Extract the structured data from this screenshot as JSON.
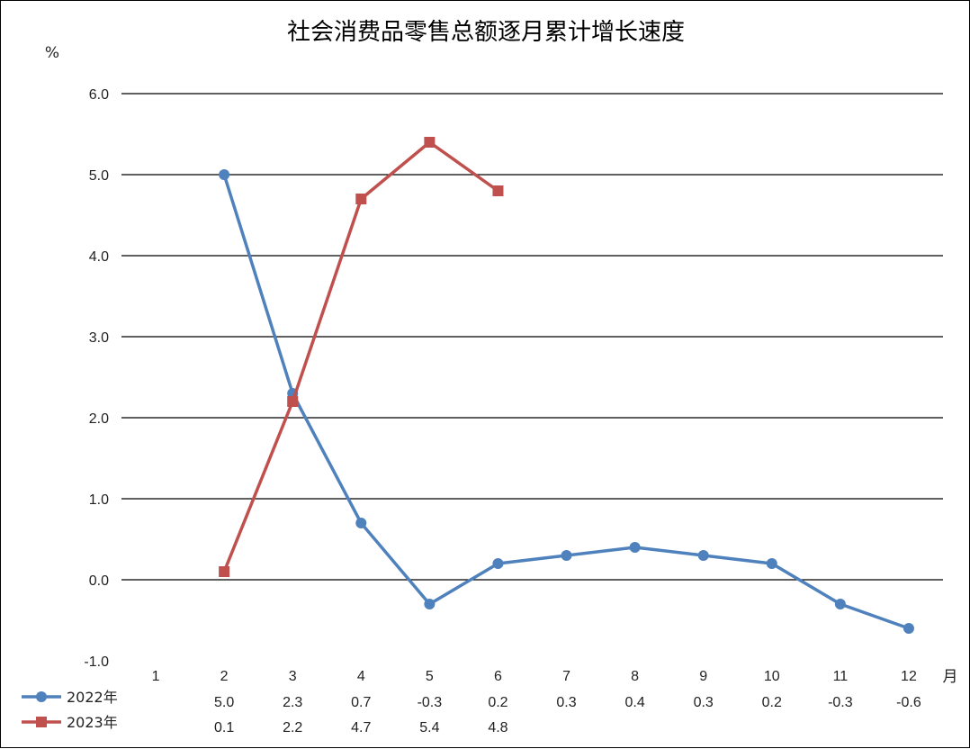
{
  "chart_data": {
    "type": "line",
    "title": "社会消费品零售总额逐月累计增长速度",
    "ylabel": "%",
    "xlabel": "月",
    "ylim": [
      -1.0,
      6.0
    ],
    "yticks": [
      "6.0",
      "5.0",
      "4.0",
      "3.0",
      "2.0",
      "1.0",
      "0.0",
      "-1.0"
    ],
    "categories": [
      "1",
      "2",
      "3",
      "4",
      "5",
      "6",
      "7",
      "8",
      "9",
      "10",
      "11",
      "12"
    ],
    "grid": true,
    "legend": "bottom-left data table",
    "series": [
      {
        "name": "2022年",
        "color": "#4F81BD",
        "marker": "circle",
        "values": [
          null,
          5.0,
          2.3,
          0.7,
          -0.3,
          0.2,
          0.3,
          0.4,
          0.3,
          0.2,
          -0.3,
          -0.6
        ],
        "labels": [
          "",
          "5.0",
          "2.3",
          "0.7",
          "-0.3",
          "0.2",
          "0.3",
          "0.4",
          "0.3",
          "0.2",
          "-0.3",
          "-0.6"
        ]
      },
      {
        "name": "2023年",
        "color": "#C0504D",
        "marker": "square",
        "values": [
          null,
          0.1,
          2.2,
          4.7,
          5.4,
          4.8,
          null,
          null,
          null,
          null,
          null,
          null
        ],
        "labels": [
          "",
          "0.1",
          "2.2",
          "4.7",
          "5.4",
          "4.8",
          "",
          "",
          "",
          "",
          "",
          ""
        ]
      }
    ]
  }
}
